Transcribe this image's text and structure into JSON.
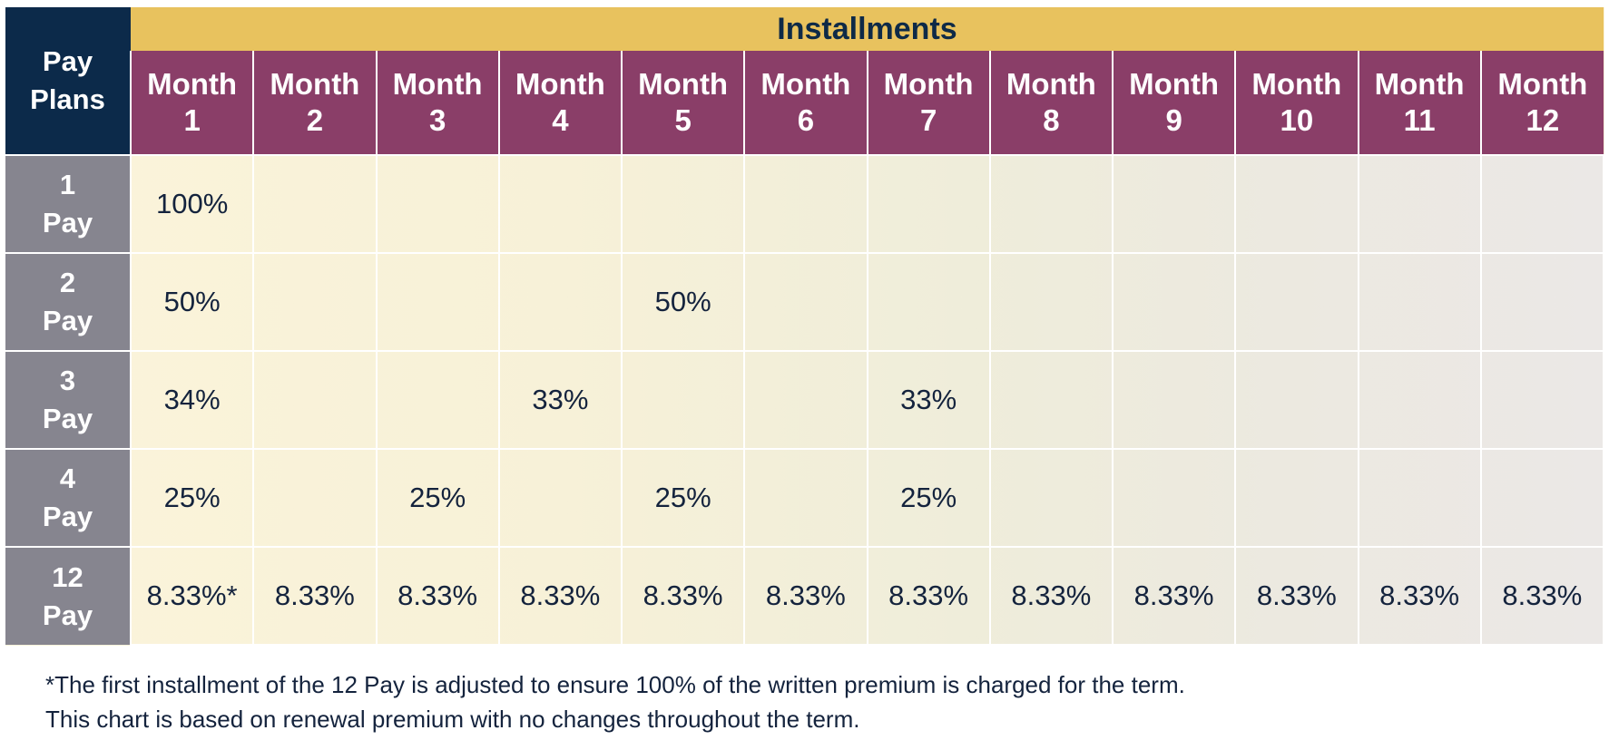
{
  "table": {
    "corner_label": [
      "Pay",
      "Plans"
    ],
    "installments_title": "Installments",
    "months": [
      [
        "Month",
        "1"
      ],
      [
        "Month",
        "2"
      ],
      [
        "Month",
        "3"
      ],
      [
        "Month",
        "4"
      ],
      [
        "Month",
        "5"
      ],
      [
        "Month",
        "6"
      ],
      [
        "Month",
        "7"
      ],
      [
        "Month",
        "8"
      ],
      [
        "Month",
        "9"
      ],
      [
        "Month",
        "10"
      ],
      [
        "Month",
        "11"
      ],
      [
        "Month",
        "12"
      ]
    ],
    "rows": [
      {
        "plan": [
          "1",
          "Pay"
        ],
        "values": [
          "100%",
          "",
          "",
          "",
          "",
          "",
          "",
          "",
          "",
          "",
          "",
          ""
        ]
      },
      {
        "plan": [
          "2",
          "Pay"
        ],
        "values": [
          "50%",
          "",
          "",
          "",
          "50%",
          "",
          "",
          "",
          "",
          "",
          "",
          ""
        ]
      },
      {
        "plan": [
          "3",
          "Pay"
        ],
        "values": [
          "34%",
          "",
          "",
          "33%",
          "",
          "",
          "33%",
          "",
          "",
          "",
          "",
          ""
        ]
      },
      {
        "plan": [
          "4",
          "Pay"
        ],
        "values": [
          "25%",
          "",
          "25%",
          "",
          "25%",
          "",
          "25%",
          "",
          "",
          "",
          "",
          ""
        ]
      },
      {
        "plan": [
          "12",
          "Pay"
        ],
        "values": [
          "8.33%*",
          "8.33%",
          "8.33%",
          "8.33%",
          "8.33%",
          "8.33%",
          "8.33%",
          "8.33%",
          "8.33%",
          "8.33%",
          "8.33%",
          "8.33%"
        ]
      }
    ]
  },
  "footnotes": {
    "line1": "*The first installment of the 12 Pay is adjusted to ensure 100% of the written premium is charged for the term.",
    "line2": "This chart is based on renewal premium with no changes throughout the term."
  },
  "colors": {
    "navy": "#0c2a4a",
    "gold": "#e8c25e",
    "plum": "#8a3e68",
    "slate": "#86858f",
    "text": "#14233d"
  }
}
